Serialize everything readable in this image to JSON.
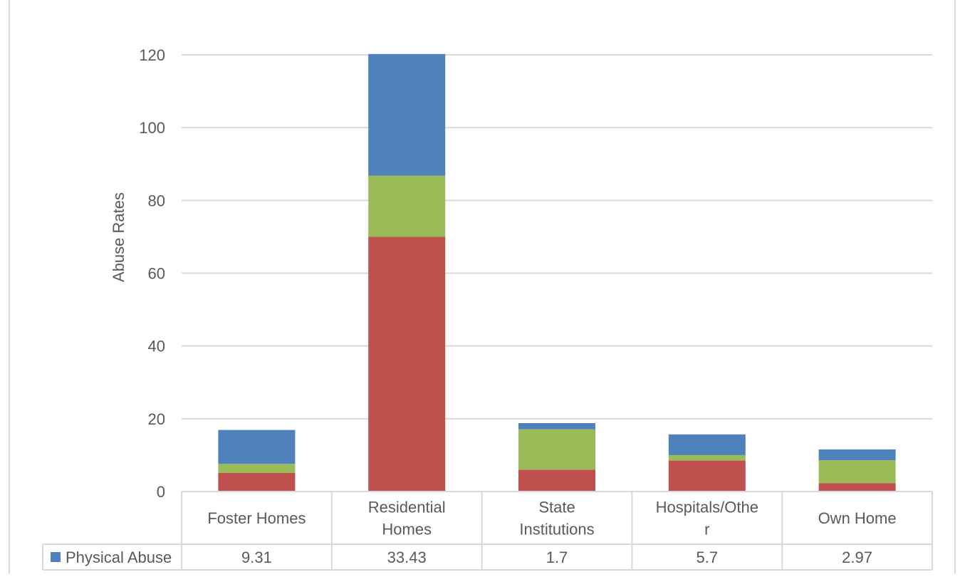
{
  "chart_data": {
    "type": "bar",
    "stacked": true,
    "ylabel": "Abuse Rates",
    "ylim": [
      0,
      120
    ],
    "yticks": [
      0,
      20,
      40,
      60,
      80,
      100,
      120
    ],
    "grid": true,
    "data_table": true,
    "categories": [
      [
        "Foster Homes"
      ],
      [
        "Residential",
        "Homes"
      ],
      [
        "State",
        "Institutions"
      ],
      [
        "Hospitals/Othe",
        "r"
      ],
      [
        "Own Home"
      ]
    ],
    "series": [
      {
        "key": "red",
        "color": "#c0504d",
        "values": [
          5.1,
          70.0,
          6.0,
          8.5,
          2.3
        ]
      },
      {
        "key": "green",
        "color": "#9bbb59",
        "values": [
          2.5,
          16.8,
          11.1,
          1.5,
          6.3
        ]
      },
      {
        "name": "Physical Abuse",
        "color": "#4f81bd",
        "values": [
          9.31,
          33.43,
          1.7,
          5.7,
          2.97
        ]
      }
    ],
    "table_rows": [
      {
        "legend": "Physical Abuse",
        "color": "#4f81bd",
        "values": [
          "9.31",
          "33.43",
          "1.7",
          "5.7",
          "2.97"
        ]
      }
    ]
  }
}
